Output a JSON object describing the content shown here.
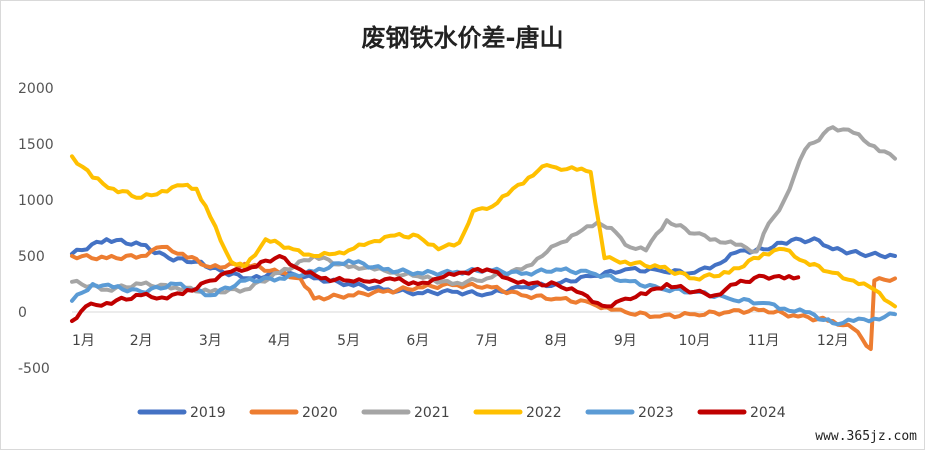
{
  "watermark": "www.365jz.com",
  "chart_data": {
    "type": "line",
    "title": "废钢铁水价差-唐山",
    "xlabel": "",
    "ylabel": "",
    "ylim": [
      -500,
      2000
    ],
    "yticks": [
      "2000",
      "1500",
      "1000",
      "500",
      "0",
      "-500"
    ],
    "ytick_values": [
      2000,
      1500,
      1000,
      500,
      0,
      -500
    ],
    "months": [
      "1月",
      "2月",
      "3月",
      "4月",
      "5月",
      "6月",
      "7月",
      "8月",
      "9月",
      "10月",
      "11月",
      "12月"
    ],
    "grid": false,
    "legend_position": "bottom",
    "series": [
      {
        "name": "2019",
        "color": "#4472c4",
        "x": [
          1.0,
          1.5,
          2.0,
          2.4,
          2.8,
          3.2,
          3.6,
          4.0,
          4.5,
          5.0,
          5.5,
          6.0,
          6.5,
          7.0,
          7.5,
          8.0,
          8.5,
          9.0,
          9.5,
          10.0,
          10.3,
          10.6,
          11.0,
          11.4,
          11.8,
          12.0,
          12.4,
          12.9
        ],
        "y": [
          520,
          650,
          600,
          480,
          450,
          350,
          300,
          350,
          300,
          250,
          200,
          170,
          180,
          160,
          220,
          250,
          320,
          380,
          370,
          350,
          420,
          530,
          560,
          640,
          640,
          560,
          520,
          500
        ]
      },
      {
        "name": "2020",
        "color": "#ed7d31",
        "x": [
          1.0,
          1.5,
          2.0,
          2.3,
          2.6,
          3.0,
          3.5,
          4.0,
          4.3,
          4.5,
          5.0,
          5.5,
          6.0,
          6.5,
          7.0,
          7.5,
          8.0,
          8.5,
          8.8,
          9.0,
          9.5,
          10.0,
          10.5,
          11.0,
          11.5,
          12.0,
          12.3,
          12.55,
          12.6,
          12.9
        ],
        "y": [
          500,
          480,
          500,
          580,
          520,
          400,
          430,
          350,
          300,
          120,
          150,
          180,
          220,
          240,
          230,
          150,
          120,
          80,
          20,
          0,
          -40,
          -20,
          0,
          20,
          -40,
          -80,
          -150,
          -330,
          280,
          300
        ]
      },
      {
        "name": "2021",
        "color": "#a5a5a5",
        "x": [
          1.0,
          1.5,
          2.0,
          2.5,
          3.0,
          3.5,
          4.0,
          4.5,
          5.0,
          5.3,
          5.6,
          6.0,
          6.5,
          7.0,
          7.5,
          7.8,
          8.0,
          8.3,
          8.6,
          8.8,
          9.0,
          9.3,
          9.6,
          10.0,
          10.3,
          10.6,
          10.9,
          11.0,
          11.3,
          11.6,
          12.0,
          12.3,
          12.6,
          12.9
        ],
        "y": [
          270,
          200,
          250,
          220,
          180,
          200,
          350,
          500,
          400,
          400,
          350,
          320,
          250,
          300,
          380,
          500,
          600,
          700,
          800,
          750,
          600,
          550,
          820,
          700,
          650,
          600,
          540,
          700,
          1000,
          1450,
          1650,
          1600,
          1480,
          1370
        ]
      },
      {
        "name": "2022",
        "color": "#ffc000",
        "x": [
          1.0,
          1.3,
          1.6,
          2.0,
          2.3,
          2.6,
          2.8,
          3.0,
          3.3,
          3.5,
          3.8,
          4.2,
          4.5,
          4.8,
          5.0,
          5.3,
          5.6,
          6.0,
          6.3,
          6.6,
          6.8,
          7.0,
          7.3,
          7.6,
          7.8,
          8.0,
          8.3,
          8.5,
          8.7,
          9.0,
          9.5,
          10.0,
          10.5,
          11.0,
          11.3,
          11.6,
          12.0,
          12.3,
          12.6,
          12.9
        ],
        "y": [
          1390,
          1200,
          1100,
          1020,
          1080,
          1130,
          1100,
          850,
          450,
          400,
          650,
          560,
          500,
          520,
          550,
          620,
          680,
          680,
          560,
          620,
          900,
          920,
          1050,
          1200,
          1300,
          1290,
          1270,
          1250,
          480,
          450,
          400,
          300,
          350,
          520,
          560,
          450,
          350,
          280,
          200,
          50
        ]
      },
      {
        "name": "2023",
        "color": "#5b9bd5",
        "x": [
          1.0,
          1.3,
          1.6,
          2.0,
          2.5,
          3.0,
          3.5,
          4.0,
          4.5,
          5.0,
          5.5,
          6.0,
          6.5,
          7.0,
          7.5,
          8.0,
          8.5,
          9.0,
          9.5,
          10.0,
          10.5,
          11.0,
          11.3,
          11.6,
          12.0,
          12.3,
          12.6,
          12.9
        ],
        "y": [
          100,
          250,
          220,
          180,
          250,
          150,
          280,
          300,
          360,
          460,
          380,
          350,
          350,
          380,
          340,
          380,
          350,
          280,
          210,
          180,
          120,
          80,
          30,
          0,
          -100,
          -80,
          -60,
          -20
        ]
      },
      {
        "name": "2024",
        "color": "#c00000",
        "x": [
          1.0,
          1.2,
          1.5,
          2.0,
          2.3,
          2.6,
          3.0,
          3.3,
          3.6,
          4.0,
          4.3,
          4.6,
          5.0,
          5.3,
          5.6,
          6.0,
          6.3,
          6.6,
          7.0,
          7.3,
          7.6,
          8.0,
          8.3,
          8.6,
          8.8,
          9.0,
          9.3,
          9.6,
          10.0,
          10.3,
          10.6,
          11.0,
          11.3,
          11.5
        ],
        "y": [
          -80,
          50,
          80,
          150,
          130,
          160,
          280,
          360,
          400,
          500,
          380,
          300,
          280,
          270,
          300,
          250,
          300,
          350,
          380,
          300,
          250,
          250,
          180,
          80,
          50,
          120,
          160,
          250,
          180,
          150,
          250,
          320,
          300,
          310
        ]
      }
    ]
  }
}
